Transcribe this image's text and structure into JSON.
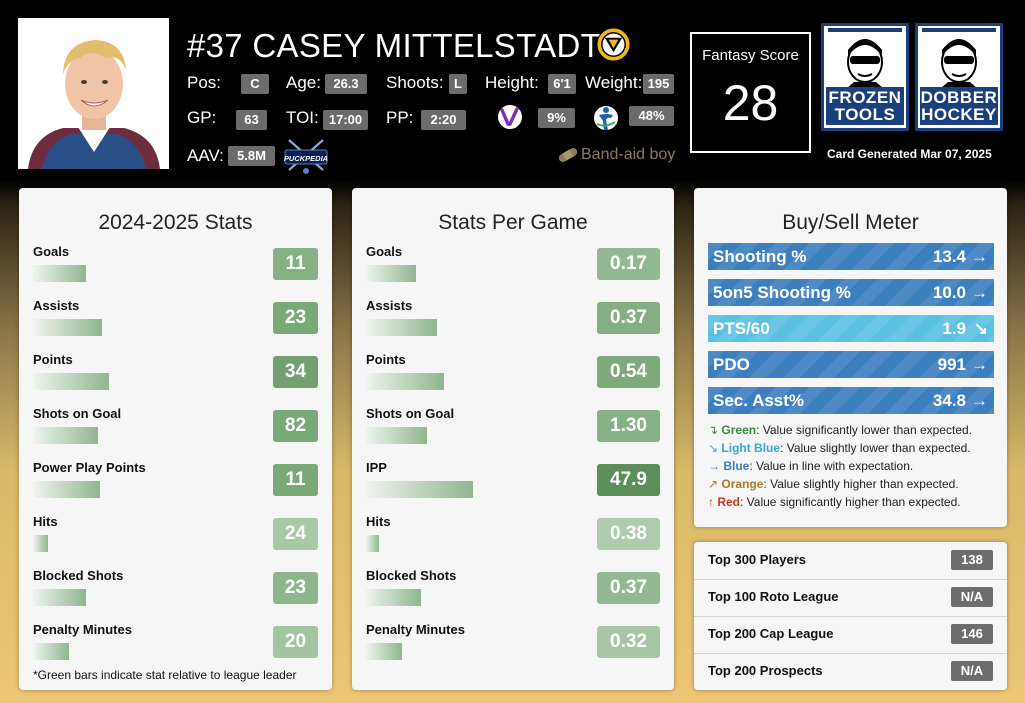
{
  "player": {
    "name": "#37 CASEY MITTELSTADT",
    "team_icon": "boston-bruins-logo",
    "pos_label": "Pos:",
    "pos": "C",
    "age_label": "Age:",
    "age": "26.3",
    "shoots_label": "Shoots:",
    "shoots": "L",
    "height_label": "Height:",
    "height": "6'1",
    "weight_label": "Weight:",
    "weight": "195",
    "gp_label": "GP:",
    "gp": "63",
    "toi_label": "TOI:",
    "toi": "17:00",
    "pp_label": "PP:",
    "pp": "2:20",
    "pp_unit_icon": "pp-unit-badge",
    "pp_unit_value": "9%",
    "ipp_icon": "ipp-person-icon",
    "ipp_value": "48%",
    "aav_label": "AAV:",
    "aav": "5.8M",
    "puckpedia_logo": "PUCKPEDIA",
    "bandaid_icon": "band-aid-icon",
    "bandaid_text": "Band-aid boy"
  },
  "fantasy": {
    "label": "Fantasy Score",
    "value": "28"
  },
  "logos": {
    "frozen_tools": "FROZEN TOOLS",
    "dobber_hockey": "DOBBER HOCKEY"
  },
  "card_generated": "Card Generated Mar 07, 2025",
  "season_stats": {
    "title": "2024-2025 Stats",
    "rows": [
      {
        "label": "Goals",
        "value": "11",
        "bar": 0.25,
        "color": "#86b184"
      },
      {
        "label": "Assists",
        "value": "23",
        "bar": 0.33,
        "color": "#7aa978"
      },
      {
        "label": "Points",
        "value": "34",
        "bar": 0.36,
        "color": "#749f72"
      },
      {
        "label": "Shots on Goal",
        "value": "82",
        "bar": 0.31,
        "color": "#7aa978"
      },
      {
        "label": "Power Play Points",
        "value": "11",
        "bar": 0.32,
        "color": "#7aa978"
      },
      {
        "label": "Hits",
        "value": "24",
        "bar": 0.07,
        "color": "#a8c8a6"
      },
      {
        "label": "Blocked Shots",
        "value": "23",
        "bar": 0.25,
        "color": "#8eb68c"
      },
      {
        "label": "Penalty Minutes",
        "value": "20",
        "bar": 0.17,
        "color": "#a3c4a1"
      }
    ],
    "footnote": "*Green bars indicate stat relative to league leader"
  },
  "per_game": {
    "title": "Stats Per Game",
    "rows": [
      {
        "label": "Goals",
        "value": "0.17",
        "bar": 0.24,
        "color": "#93b891"
      },
      {
        "label": "Assists",
        "value": "0.37",
        "bar": 0.34,
        "color": "#86ae84"
      },
      {
        "label": "Points",
        "value": "0.54",
        "bar": 0.37,
        "color": "#7fa87d"
      },
      {
        "label": "Shots on Goal",
        "value": "1.30",
        "bar": 0.29,
        "color": "#88b086"
      },
      {
        "label": "IPP",
        "value": "47.9",
        "bar": 0.51,
        "color": "#5b8e59"
      },
      {
        "label": "Hits",
        "value": "0.38",
        "bar": 0.06,
        "color": "#afcbad"
      },
      {
        "label": "Blocked Shots",
        "value": "0.37",
        "bar": 0.26,
        "color": "#93b891"
      },
      {
        "label": "Penalty Minutes",
        "value": "0.32",
        "bar": 0.17,
        "color": "#a8c6a6"
      }
    ]
  },
  "buy_sell": {
    "title": "Buy/Sell Meter",
    "rows": [
      {
        "label": "Shooting %",
        "value": "13.4",
        "arrow": "→",
        "trend": "blue",
        "color": "#3c7fbf"
      },
      {
        "label": "5on5 Shooting %",
        "value": "10.0",
        "arrow": "→",
        "trend": "blue",
        "color": "#3c7fbf"
      },
      {
        "label": "PTS/60",
        "value": "1.9",
        "arrow": "↘",
        "trend": "light-blue",
        "color": "#5cc0e2"
      },
      {
        "label": "PDO",
        "value": "991",
        "arrow": "→",
        "trend": "blue",
        "color": "#3c7fbf"
      },
      {
        "label": "Sec. Asst%",
        "value": "34.8",
        "arrow": "→",
        "trend": "blue",
        "color": "#3c7fbf"
      }
    ],
    "legend": [
      {
        "arrow": "↴",
        "name": "Green",
        "text": ": Value significantly lower than expected.",
        "color": "#3d8a3d"
      },
      {
        "arrow": "↘",
        "name": "Light Blue",
        "text": ": Value slightly lower than expected.",
        "color": "#3aa6d3"
      },
      {
        "arrow": "→",
        "name": "Blue",
        "text": ": Value in line with expectation.",
        "color": "#3c7fbf"
      },
      {
        "arrow": "↗",
        "name": "Orange",
        "text": ": Value slightly higher than expected.",
        "color": "#b07a2a"
      },
      {
        "arrow": "↑",
        "name": "Red",
        "text": ": Value significantly higher than expected.",
        "color": "#c0392b"
      }
    ]
  },
  "rankings": [
    {
      "label": "Top 300 Players",
      "value": "138"
    },
    {
      "label": "Top 100 Roto League",
      "value": "N/A"
    },
    {
      "label": "Top 200 Cap League",
      "value": "146"
    },
    {
      "label": "Top 200 Prospects",
      "value": "N/A"
    }
  ]
}
